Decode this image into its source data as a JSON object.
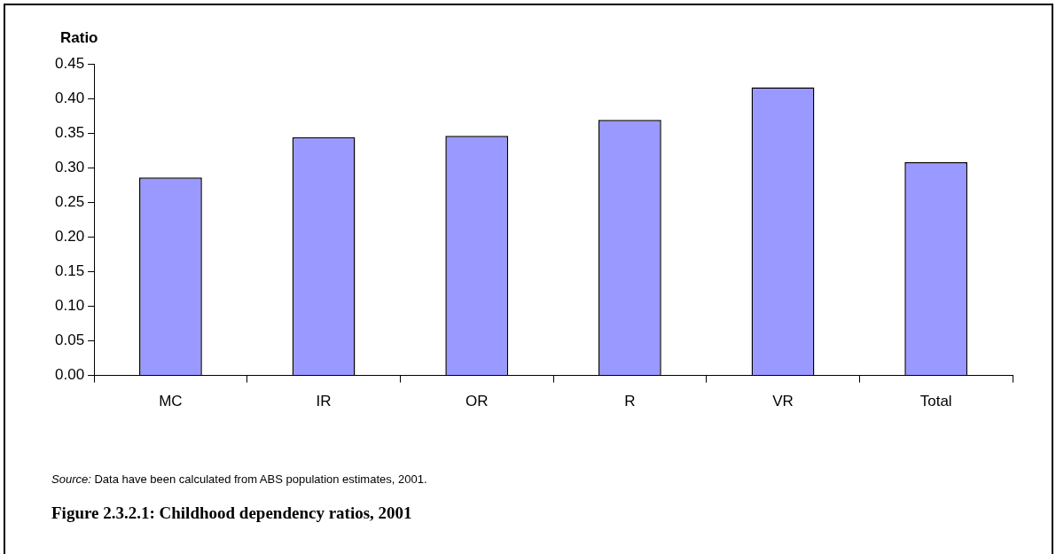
{
  "chart_data": {
    "type": "bar",
    "title": "Figure 2.3.2.1: Childhood dependency ratios, 2001",
    "ylabel": "Ratio",
    "categories": [
      "MC",
      "IR",
      "OR",
      "R",
      "VR",
      "Total"
    ],
    "values": [
      0.286,
      0.344,
      0.346,
      0.369,
      0.416,
      0.308
    ],
    "color": "#9999ff",
    "ylim": [
      0,
      0.45
    ],
    "yticks": [
      {
        "value": 0,
        "label": "0.00"
      },
      {
        "value": 0.05,
        "label": "0.05"
      },
      {
        "value": 0.1,
        "label": "0.10"
      },
      {
        "value": 0.15,
        "label": "0.15"
      },
      {
        "value": 0.2,
        "label": "0.20"
      },
      {
        "value": 0.25,
        "label": "0.25"
      },
      {
        "value": 0.3,
        "label": "0.30"
      },
      {
        "value": 0.35,
        "label": "0.35"
      },
      {
        "value": 0.4,
        "label": "0.40"
      },
      {
        "value": 0.45,
        "label": "0.45"
      }
    ],
    "grid": false,
    "legend": false,
    "annotations": [
      "Source: Data have been calculated from ABS population estimates, 2001."
    ]
  }
}
